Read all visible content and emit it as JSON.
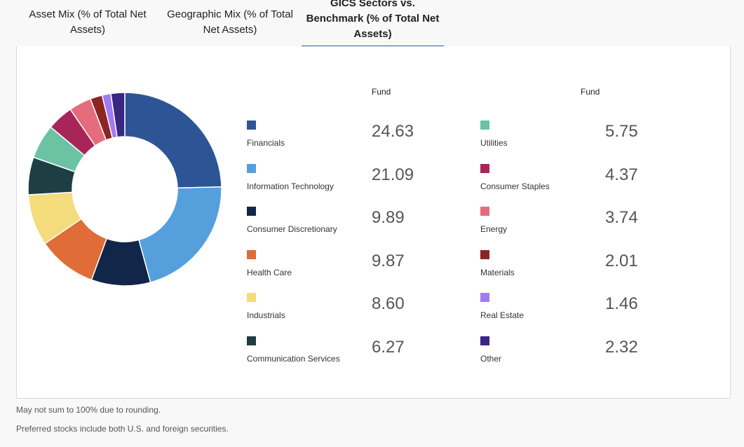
{
  "tabs": [
    {
      "label": "Asset Mix (% of Total Net Assets)"
    },
    {
      "label": "Geographic Mix (% of Total Net Assets)"
    },
    {
      "label": "GICS Sectors vs. Benchmark (% of Total Net Assets)"
    }
  ],
  "table": {
    "col_header_left": "Fund",
    "col_header_right": "Fund",
    "left_rows": [
      {
        "name": "Financials",
        "value": "24.63",
        "color": "#2d5596"
      },
      {
        "name": "Information Technology",
        "value": "21.09",
        "color": "#55a0dc"
      },
      {
        "name": "Consumer Discretionary",
        "value": "9.89",
        "color": "#12264a"
      },
      {
        "name": "Health Care",
        "value": "9.87",
        "color": "#e06c38"
      },
      {
        "name": "Industrials",
        "value": "8.60",
        "color": "#f4dc7c"
      },
      {
        "name": "Communication Services",
        "value": "6.27",
        "color": "#1d3f44"
      }
    ],
    "right_rows": [
      {
        "name": "Utilities",
        "value": "5.75",
        "color": "#6cc3a4"
      },
      {
        "name": "Consumer Staples",
        "value": "4.37",
        "color": "#a8255a"
      },
      {
        "name": "Energy",
        "value": "3.74",
        "color": "#e56c7c"
      },
      {
        "name": "Materials",
        "value": "2.01",
        "color": "#8c2424"
      },
      {
        "name": "Real Estate",
        "value": "1.46",
        "color": "#a07cf0"
      },
      {
        "name": "Other",
        "value": "2.32",
        "color": "#3a2684"
      }
    ]
  },
  "chart_data": {
    "type": "pie",
    "categories": [
      "Financials",
      "Information Technology",
      "Consumer Discretionary",
      "Health Care",
      "Industrials",
      "Communication Services",
      "Utilities",
      "Consumer Staples",
      "Energy",
      "Materials",
      "Real Estate",
      "Other"
    ],
    "values": [
      24.63,
      21.09,
      9.89,
      9.87,
      8.6,
      6.27,
      5.75,
      4.37,
      3.74,
      2.01,
      1.46,
      2.32
    ],
    "colors": [
      "#2d5596",
      "#55a0dc",
      "#12264a",
      "#e06c38",
      "#f4dc7c",
      "#1d3f44",
      "#6cc3a4",
      "#a8255a",
      "#e56c7c",
      "#8c2424",
      "#a07cf0",
      "#3a2684"
    ],
    "donut": true
  },
  "notes": {
    "rounding": "May not sum to 100% due to rounding.",
    "preferred": "Preferred stocks include both U.S. and foreign securities."
  }
}
